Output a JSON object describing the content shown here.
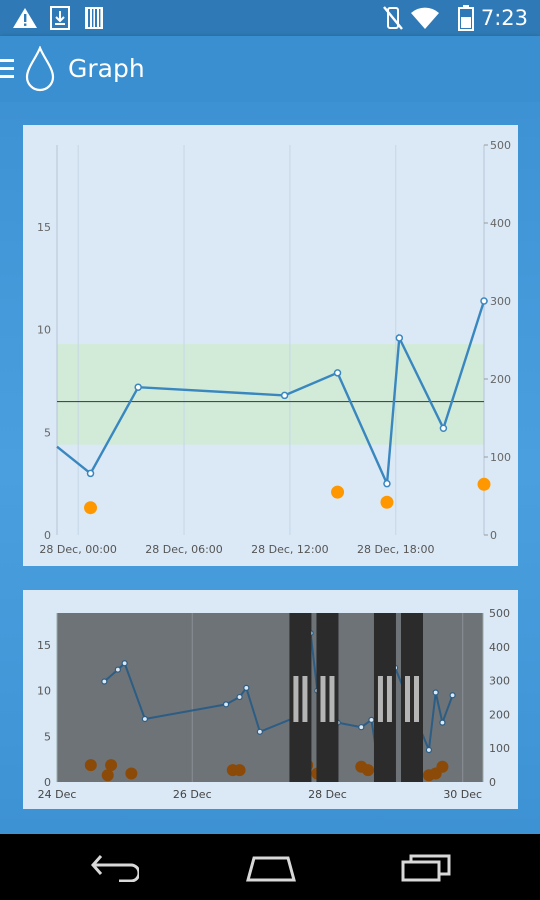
{
  "status_bar": {
    "time": "7:23",
    "icons": [
      "warning-icon",
      "download-icon",
      "barcode-icon",
      "mute-icon",
      "wifi-icon",
      "battery-icon"
    ]
  },
  "app_bar": {
    "title": "Graph",
    "icons": [
      "menu-icon",
      "drop-icon"
    ]
  },
  "nav_bar": {
    "icons": [
      "back-icon",
      "home-icon",
      "recents-icon"
    ]
  },
  "colors": {
    "line": "#3a87c0",
    "target_band": "#d1ebd8",
    "carbs": "#ff9800",
    "card_bg": "#dbe9f6",
    "appbar": "#3a8fd0"
  },
  "chart_data": [
    {
      "type": "line",
      "y_left_ticks": [
        "0",
        "5",
        "10",
        "15"
      ],
      "y_right_ticks": [
        "0",
        "100",
        "200",
        "300",
        "400",
        "500"
      ],
      "x_ticks": [
        "28 Dec, 00:00",
        "28 Dec, 06:00",
        "28 Dec, 12:00",
        "28 Dec, 18:00"
      ],
      "ylim_left": [
        0,
        19
      ],
      "ylim_right": [
        0,
        500
      ],
      "target_range": [
        4.4,
        9.3
      ],
      "target_line": 6.5,
      "series": [
        {
          "values": [
            [
              -1.2,
              4.3
            ],
            [
              0.7,
              3.0
            ],
            [
              3.4,
              7.2
            ],
            [
              11.7,
              6.8
            ],
            [
              14.7,
              7.9
            ],
            [
              17.5,
              2.5
            ],
            [
              18.2,
              9.6
            ],
            [
              20.7,
              5.2
            ],
            [
              23.0,
              11.4
            ]
          ]
        },
        {
          "values": [
            [
              0.7,
              35
            ],
            [
              14.7,
              55
            ],
            [
              17.5,
              42
            ],
            [
              23.0,
              65
            ]
          ]
        }
      ]
    },
    {
      "type": "line",
      "y_left_ticks": [
        "0",
        "5",
        "10",
        "15"
      ],
      "y_right_ticks": [
        "0",
        "100",
        "200",
        "300",
        "400",
        "500"
      ],
      "x_ticks": [
        "24 Dec",
        "26 Dec",
        "28 Dec",
        "30 Dec"
      ],
      "ylim_left": [
        0,
        18.5
      ],
      "ylim_right": [
        0,
        500
      ],
      "series": [
        {
          "values": [
            [
              24.7,
              11.0
            ],
            [
              24.9,
              12.3
            ],
            [
              25.0,
              13.0
            ],
            [
              25.3,
              6.9
            ],
            [
              26.5,
              8.5
            ],
            [
              26.7,
              9.3
            ],
            [
              26.8,
              10.3
            ],
            [
              27.0,
              5.5
            ],
            [
              27.5,
              7.0
            ],
            [
              27.65,
              7.3
            ],
            [
              27.75,
              16.3
            ],
            [
              27.85,
              10.0
            ],
            [
              28.0,
              5.0
            ],
            [
              28.1,
              2.0
            ],
            [
              28.15,
              6.5
            ],
            [
              28.5,
              6.0
            ],
            [
              28.65,
              6.8
            ],
            [
              28.75,
              2.0
            ],
            [
              28.8,
              8.5
            ],
            [
              28.9,
              4.8
            ],
            [
              29.0,
              12.5
            ],
            [
              29.5,
              3.5
            ],
            [
              29.6,
              9.8
            ],
            [
              29.7,
              6.5
            ],
            [
              29.85,
              9.5
            ]
          ]
        },
        {
          "values": [
            [
              24.5,
              50
            ],
            [
              24.75,
              20
            ],
            [
              24.8,
              50
            ],
            [
              25.1,
              25
            ],
            [
              26.6,
              35
            ],
            [
              26.7,
              35
            ],
            [
              27.7,
              50
            ],
            [
              27.85,
              25
            ],
            [
              28.5,
              45
            ],
            [
              28.6,
              35
            ],
            [
              28.8,
              55
            ],
            [
              29.5,
              20
            ],
            [
              29.6,
              25
            ],
            [
              29.7,
              45
            ]
          ]
        }
      ],
      "highlight_windows": [
        [
          27.6,
          28.0
        ],
        [
          28.85,
          29.25
        ]
      ]
    }
  ]
}
